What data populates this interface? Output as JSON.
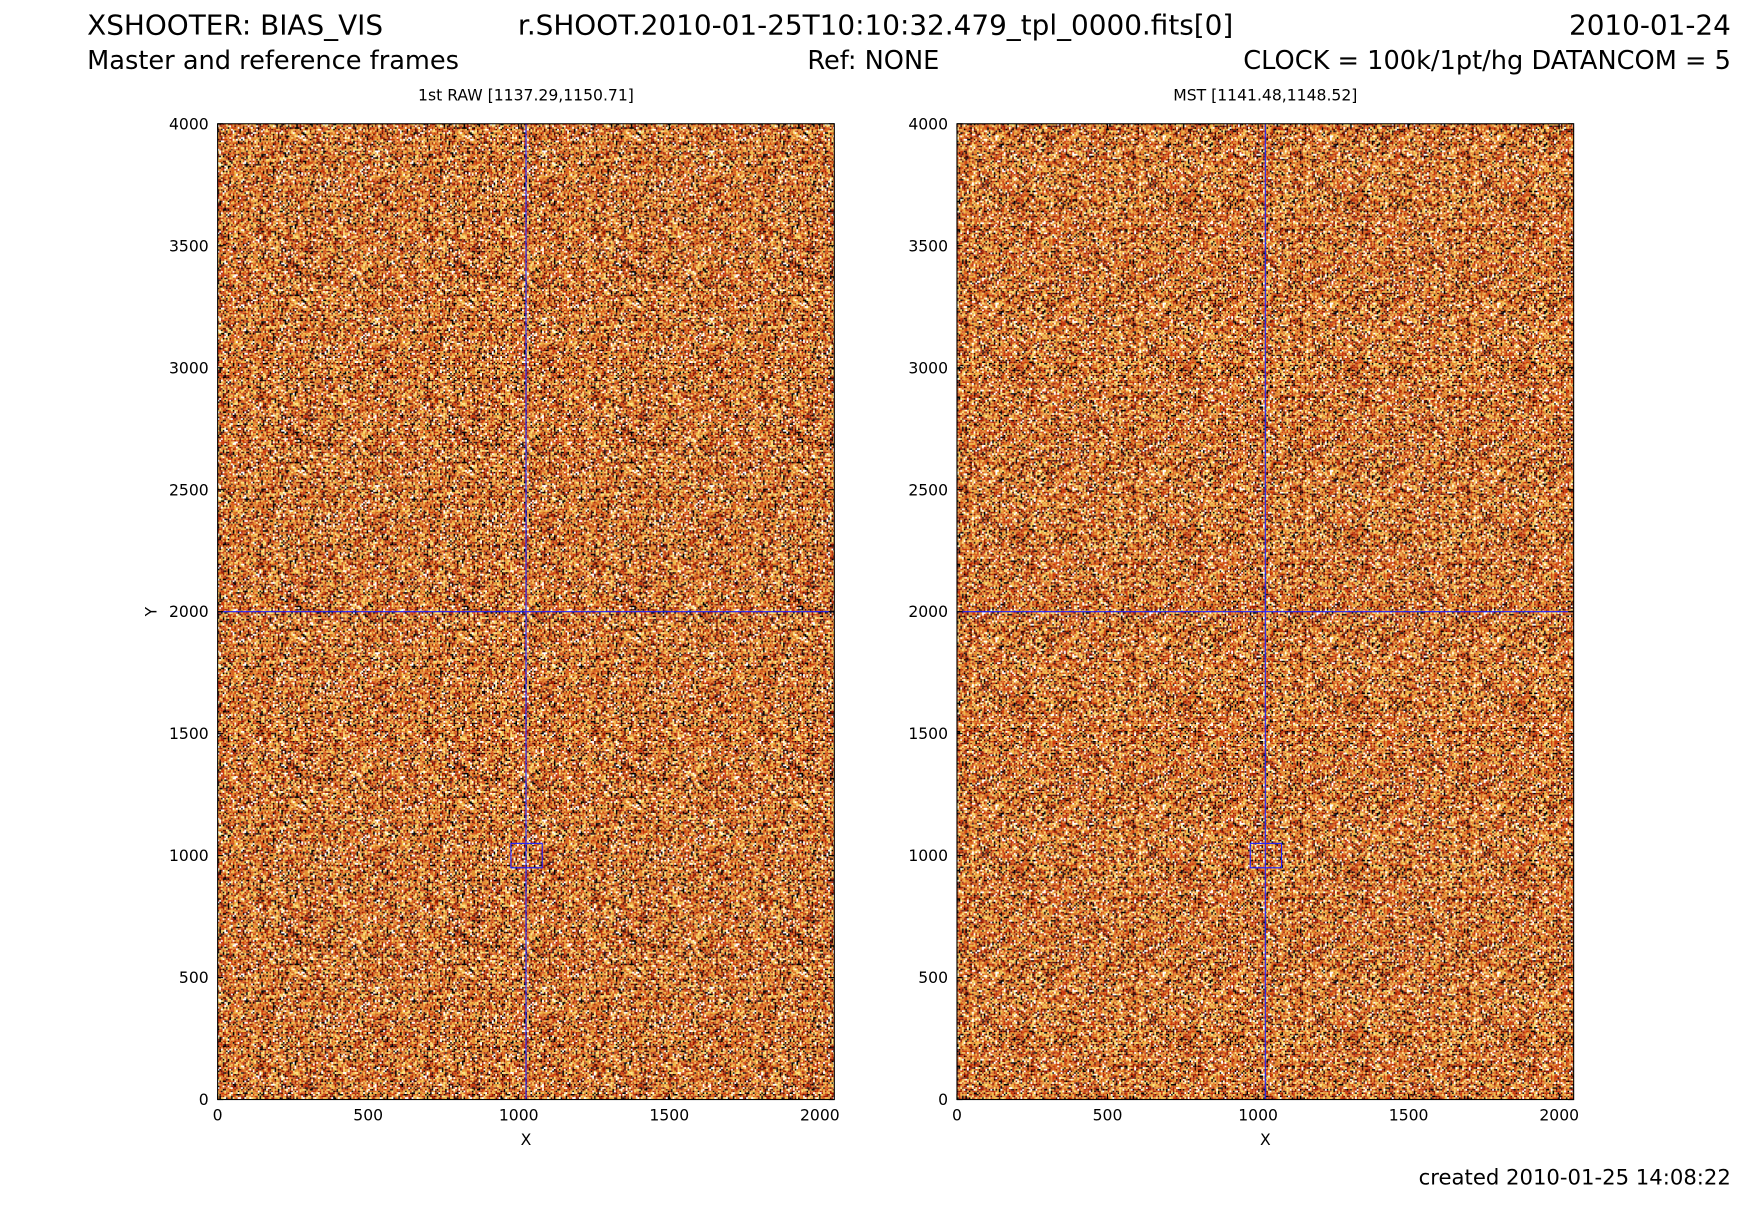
{
  "header": {
    "title": "XSHOOTER: BIAS_VIS",
    "file": "r.SHOOT.2010-01-25T10:10:32.479_tpl_0000.fits[0]",
    "date": "2010-01-24",
    "subtitle": "Master and reference frames",
    "ref": "Ref: NONE",
    "clock": "CLOCK = 100k/1pt/hg DATANCOM = 5"
  },
  "footer": "created 2010-01-25 14:08:22",
  "chart_data": [
    {
      "type": "image",
      "title": "1st RAW [1137.29,1150.71]",
      "xlabel": "X",
      "ylabel": "Y",
      "xlim": [
        0,
        2048
      ],
      "ylim": [
        0,
        4000
      ],
      "xticks": [
        0,
        500,
        1000,
        1500,
        2000
      ],
      "yticks": [
        0,
        500,
        1000,
        1500,
        2000,
        2500,
        3000,
        3500,
        4000
      ],
      "cursor": {
        "x": 1024,
        "y": 2000,
        "color": "#2020ff"
      },
      "box": {
        "x0": 974,
        "y0": 950,
        "x1": 1078,
        "y1": 1050
      }
    },
    {
      "type": "image",
      "title": "MST [1141.48,1148.52]",
      "xlabel": "X",
      "xlim": [
        0,
        2048
      ],
      "ylim": [
        0,
        4000
      ],
      "xticks": [
        0,
        500,
        1000,
        1500,
        2000
      ],
      "yticks": [
        0,
        500,
        1000,
        1500,
        2000,
        2500,
        3000,
        3500,
        4000
      ],
      "cursor": {
        "x": 1024,
        "y": 2000,
        "color": "#2020ff"
      },
      "box": {
        "x0": 974,
        "y0": 950,
        "x1": 1078,
        "y1": 1050
      }
    }
  ]
}
